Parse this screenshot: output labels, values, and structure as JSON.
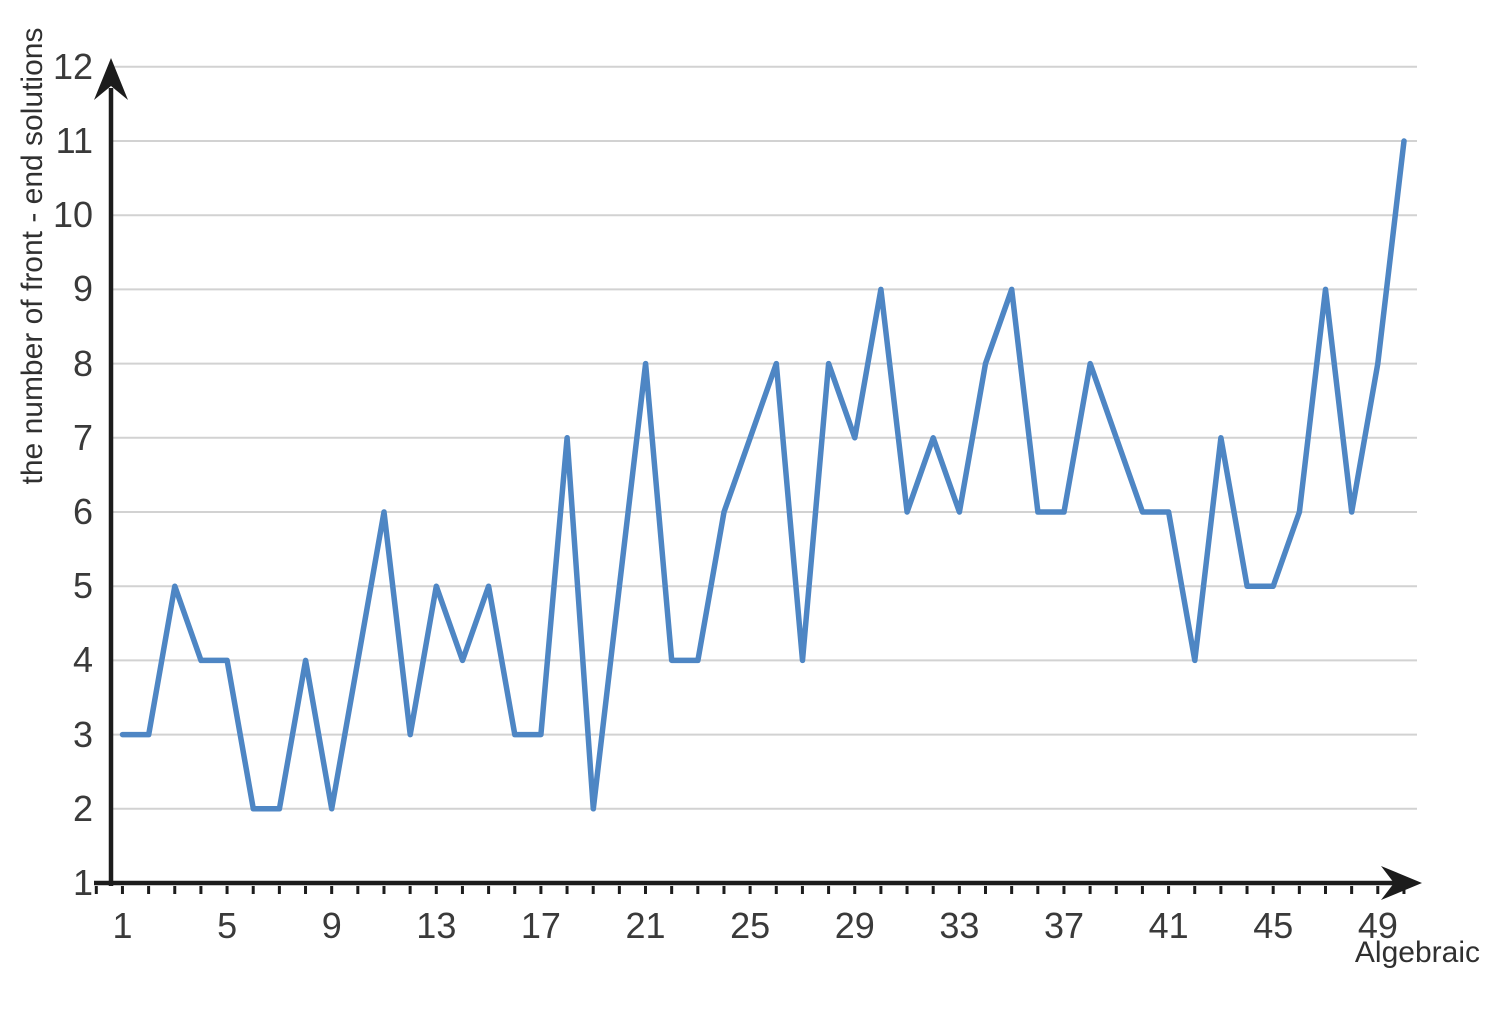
{
  "chart_data": {
    "type": "line",
    "title": "",
    "xlabel": "Algebraic",
    "ylabel": "the number of front - end solutions",
    "x": [
      1,
      2,
      3,
      4,
      5,
      6,
      7,
      8,
      9,
      10,
      11,
      12,
      13,
      14,
      15,
      16,
      17,
      18,
      19,
      20,
      21,
      22,
      23,
      24,
      25,
      26,
      27,
      28,
      29,
      30,
      31,
      32,
      33,
      34,
      35,
      36,
      37,
      38,
      39,
      40,
      41,
      42,
      43,
      44,
      45,
      46,
      47,
      48,
      49,
      50
    ],
    "values": [
      3,
      3,
      5,
      4,
      4,
      2,
      2,
      4,
      2,
      4,
      6,
      3,
      5,
      4,
      5,
      3,
      3,
      7,
      2,
      5,
      8,
      4,
      4,
      6,
      7,
      8,
      4,
      8,
      7,
      9,
      6,
      7,
      6,
      8,
      9,
      6,
      6,
      8,
      7,
      6,
      6,
      4,
      7,
      5,
      5,
      6,
      9,
      6,
      8,
      11
    ],
    "x_tick_labels": [
      "1",
      "5",
      "9",
      "13",
      "17",
      "21",
      "25",
      "29",
      "33",
      "37",
      "41",
      "45",
      "49"
    ],
    "y_tick_labels": [
      "1",
      "2",
      "3",
      "4",
      "5",
      "6",
      "7",
      "8",
      "9",
      "10",
      "11",
      "12"
    ],
    "xlim": [
      1,
      50
    ],
    "ylim": [
      1,
      12
    ],
    "grid": "horizontal-only",
    "legend": "none",
    "line_color": "#4e86c4",
    "gridline_color": "#d2d2d2",
    "axis_color": "#1c1c1c",
    "label_color": "#3a3a3a",
    "background_color": "#ffffff"
  }
}
